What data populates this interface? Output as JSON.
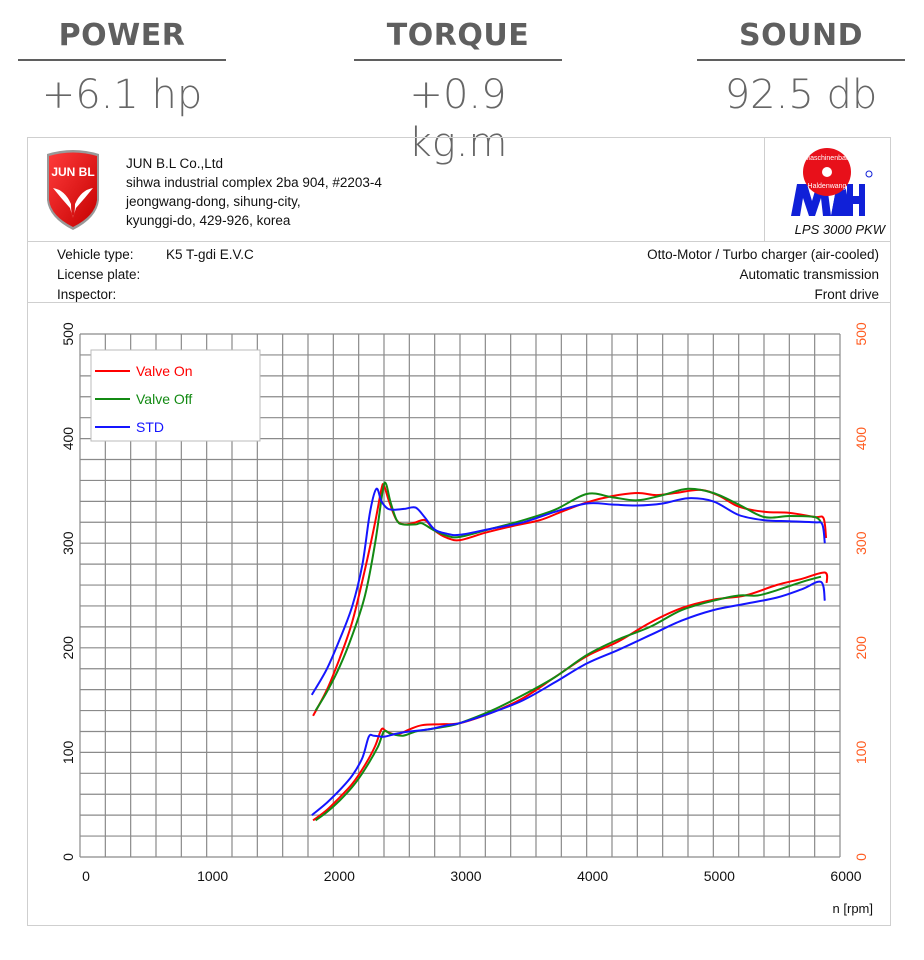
{
  "stats": [
    {
      "label": "POWER",
      "value": "+6.1 hp"
    },
    {
      "label": "TORQUE",
      "value": "+0.9 kg.m"
    },
    {
      "label": "SOUND",
      "value": "92.5 db"
    }
  ],
  "header": {
    "logo_text": "JUN B.L",
    "company": "JUN B.L Co.,Ltd",
    "address": [
      "sihwa industrial complex 2ba 904, #2203-4",
      "jeongwang-dong, sihung-city,",
      "kyunggi-do, 429-926, korea"
    ],
    "maha_logo_text": [
      "Maschinenbau",
      "Haldenwang",
      "MAHA"
    ],
    "model": "LPS 3000 PKW"
  },
  "info": {
    "vehicle_type_label": "Vehicle type:",
    "vehicle_type": "K5 T-gdi E.V.C",
    "license_plate_label": "License plate:",
    "inspector_label": "Inspector:",
    "engine": "Otto-Motor / Turbo charger (air-cooled)",
    "transmission": "Automatic transmission",
    "drive": "Front drive"
  },
  "chart_data": {
    "type": "line",
    "xlabel": "n [rpm]",
    "xlim": [
      0,
      6000
    ],
    "xticks": [
      "0",
      "1000",
      "2000",
      "3000",
      "4000",
      "5000",
      "6000"
    ],
    "ylim": [
      0,
      500
    ],
    "yticks_left": [
      "0",
      "100",
      "200",
      "300",
      "400",
      "500"
    ],
    "yticks_right": [
      "0",
      "100",
      "200",
      "300",
      "400",
      "500"
    ],
    "right_axis_color": "#ff5a1e",
    "grid": true,
    "legend": "top-left",
    "series": [
      {
        "name": "Valve On",
        "color": "#ff0000",
        "upper": [
          [
            1840,
            135
          ],
          [
            1950,
            160
          ],
          [
            2050,
            190
          ],
          [
            2150,
            225
          ],
          [
            2250,
            275
          ],
          [
            2330,
            320
          ],
          [
            2380,
            352
          ],
          [
            2400,
            355
          ],
          [
            2440,
            340
          ],
          [
            2500,
            322
          ],
          [
            2565,
            318
          ],
          [
            2650,
            320
          ],
          [
            2725,
            322
          ],
          [
            2800,
            312
          ],
          [
            2900,
            305
          ],
          [
            3000,
            303
          ],
          [
            3200,
            310
          ],
          [
            3400,
            316
          ],
          [
            3630,
            322
          ],
          [
            3800,
            330
          ],
          [
            4000,
            339
          ],
          [
            4200,
            345
          ],
          [
            4400,
            348
          ],
          [
            4550,
            346
          ],
          [
            4700,
            348
          ],
          [
            4900,
            351
          ],
          [
            5050,
            345
          ],
          [
            5200,
            335
          ],
          [
            5400,
            330
          ],
          [
            5600,
            329
          ],
          [
            5800,
            325
          ],
          [
            5870,
            324
          ],
          [
            5890,
            305
          ]
        ],
        "lower": [
          [
            1840,
            35
          ],
          [
            1950,
            45
          ],
          [
            2050,
            57
          ],
          [
            2150,
            70
          ],
          [
            2250,
            88
          ],
          [
            2330,
            106
          ],
          [
            2380,
            122
          ],
          [
            2420,
            120
          ],
          [
            2500,
            117
          ],
          [
            2600,
            122
          ],
          [
            2700,
            126
          ],
          [
            2850,
            127
          ],
          [
            3000,
            128
          ],
          [
            3250,
            138
          ],
          [
            3500,
            152
          ],
          [
            3750,
            172
          ],
          [
            4000,
            192
          ],
          [
            4250,
            206
          ],
          [
            4500,
            224
          ],
          [
            4750,
            238
          ],
          [
            5000,
            246
          ],
          [
            5250,
            250
          ],
          [
            5500,
            260
          ],
          [
            5700,
            266
          ],
          [
            5880,
            272
          ],
          [
            5895,
            262
          ]
        ]
      },
      {
        "name": "Valve Off",
        "color": "#138a13",
        "upper": [
          [
            1860,
            140
          ],
          [
            1950,
            158
          ],
          [
            2050,
            182
          ],
          [
            2150,
            212
          ],
          [
            2250,
            250
          ],
          [
            2330,
            300
          ],
          [
            2390,
            350
          ],
          [
            2415,
            357
          ],
          [
            2450,
            340
          ],
          [
            2500,
            322
          ],
          [
            2550,
            318
          ],
          [
            2650,
            318
          ],
          [
            2700,
            319
          ],
          [
            2800,
            312
          ],
          [
            2900,
            307
          ],
          [
            3000,
            306
          ],
          [
            3250,
            314
          ],
          [
            3500,
            322
          ],
          [
            3750,
            332
          ],
          [
            4000,
            347
          ],
          [
            4200,
            344
          ],
          [
            4400,
            341
          ],
          [
            4600,
            346
          ],
          [
            4800,
            352
          ],
          [
            5000,
            348
          ],
          [
            5200,
            337
          ],
          [
            5400,
            325
          ],
          [
            5600,
            326
          ],
          [
            5800,
            325
          ],
          [
            5850,
            320
          ]
        ],
        "lower": [
          [
            1860,
            35
          ],
          [
            1950,
            43
          ],
          [
            2050,
            54
          ],
          [
            2150,
            67
          ],
          [
            2250,
            84
          ],
          [
            2350,
            105
          ],
          [
            2400,
            120
          ],
          [
            2450,
            118
          ],
          [
            2550,
            116
          ],
          [
            2650,
            120
          ],
          [
            2750,
            122
          ],
          [
            2900,
            125
          ],
          [
            3000,
            128
          ],
          [
            3250,
            140
          ],
          [
            3500,
            155
          ],
          [
            3750,
            172
          ],
          [
            4000,
            193
          ],
          [
            4250,
            208
          ],
          [
            4500,
            220
          ],
          [
            4750,
            236
          ],
          [
            5000,
            245
          ],
          [
            5200,
            250
          ],
          [
            5350,
            250
          ],
          [
            5500,
            255
          ],
          [
            5700,
            263
          ],
          [
            5850,
            268
          ]
        ]
      },
      {
        "name": "STD",
        "color": "#1515ff",
        "upper": [
          [
            1830,
            155
          ],
          [
            1950,
            180
          ],
          [
            2050,
            208
          ],
          [
            2150,
            240
          ],
          [
            2230,
            280
          ],
          [
            2290,
            330
          ],
          [
            2340,
            352
          ],
          [
            2380,
            340
          ],
          [
            2430,
            333
          ],
          [
            2490,
            332
          ],
          [
            2570,
            333
          ],
          [
            2650,
            334
          ],
          [
            2720,
            325
          ],
          [
            2800,
            313
          ],
          [
            2900,
            309
          ],
          [
            3000,
            308
          ],
          [
            3250,
            314
          ],
          [
            3500,
            320
          ],
          [
            3750,
            330
          ],
          [
            4000,
            338
          ],
          [
            4200,
            337
          ],
          [
            4400,
            336
          ],
          [
            4600,
            338
          ],
          [
            4800,
            343
          ],
          [
            5000,
            340
          ],
          [
            5200,
            327
          ],
          [
            5400,
            322
          ],
          [
            5600,
            321
          ],
          [
            5800,
            320
          ],
          [
            5860,
            318
          ],
          [
            5880,
            300
          ]
        ],
        "lower": [
          [
            1830,
            40
          ],
          [
            1950,
            52
          ],
          [
            2050,
            64
          ],
          [
            2150,
            78
          ],
          [
            2230,
            95
          ],
          [
            2280,
            115
          ],
          [
            2320,
            116
          ],
          [
            2400,
            115
          ],
          [
            2500,
            118
          ],
          [
            2600,
            120
          ],
          [
            2750,
            122
          ],
          [
            2900,
            126
          ],
          [
            3000,
            128
          ],
          [
            3250,
            138
          ],
          [
            3500,
            150
          ],
          [
            3750,
            167
          ],
          [
            4000,
            185
          ],
          [
            4250,
            198
          ],
          [
            4500,
            212
          ],
          [
            4750,
            226
          ],
          [
            5000,
            236
          ],
          [
            5250,
            242
          ],
          [
            5500,
            248
          ],
          [
            5700,
            256
          ],
          [
            5850,
            263
          ],
          [
            5880,
            245
          ]
        ]
      }
    ]
  }
}
